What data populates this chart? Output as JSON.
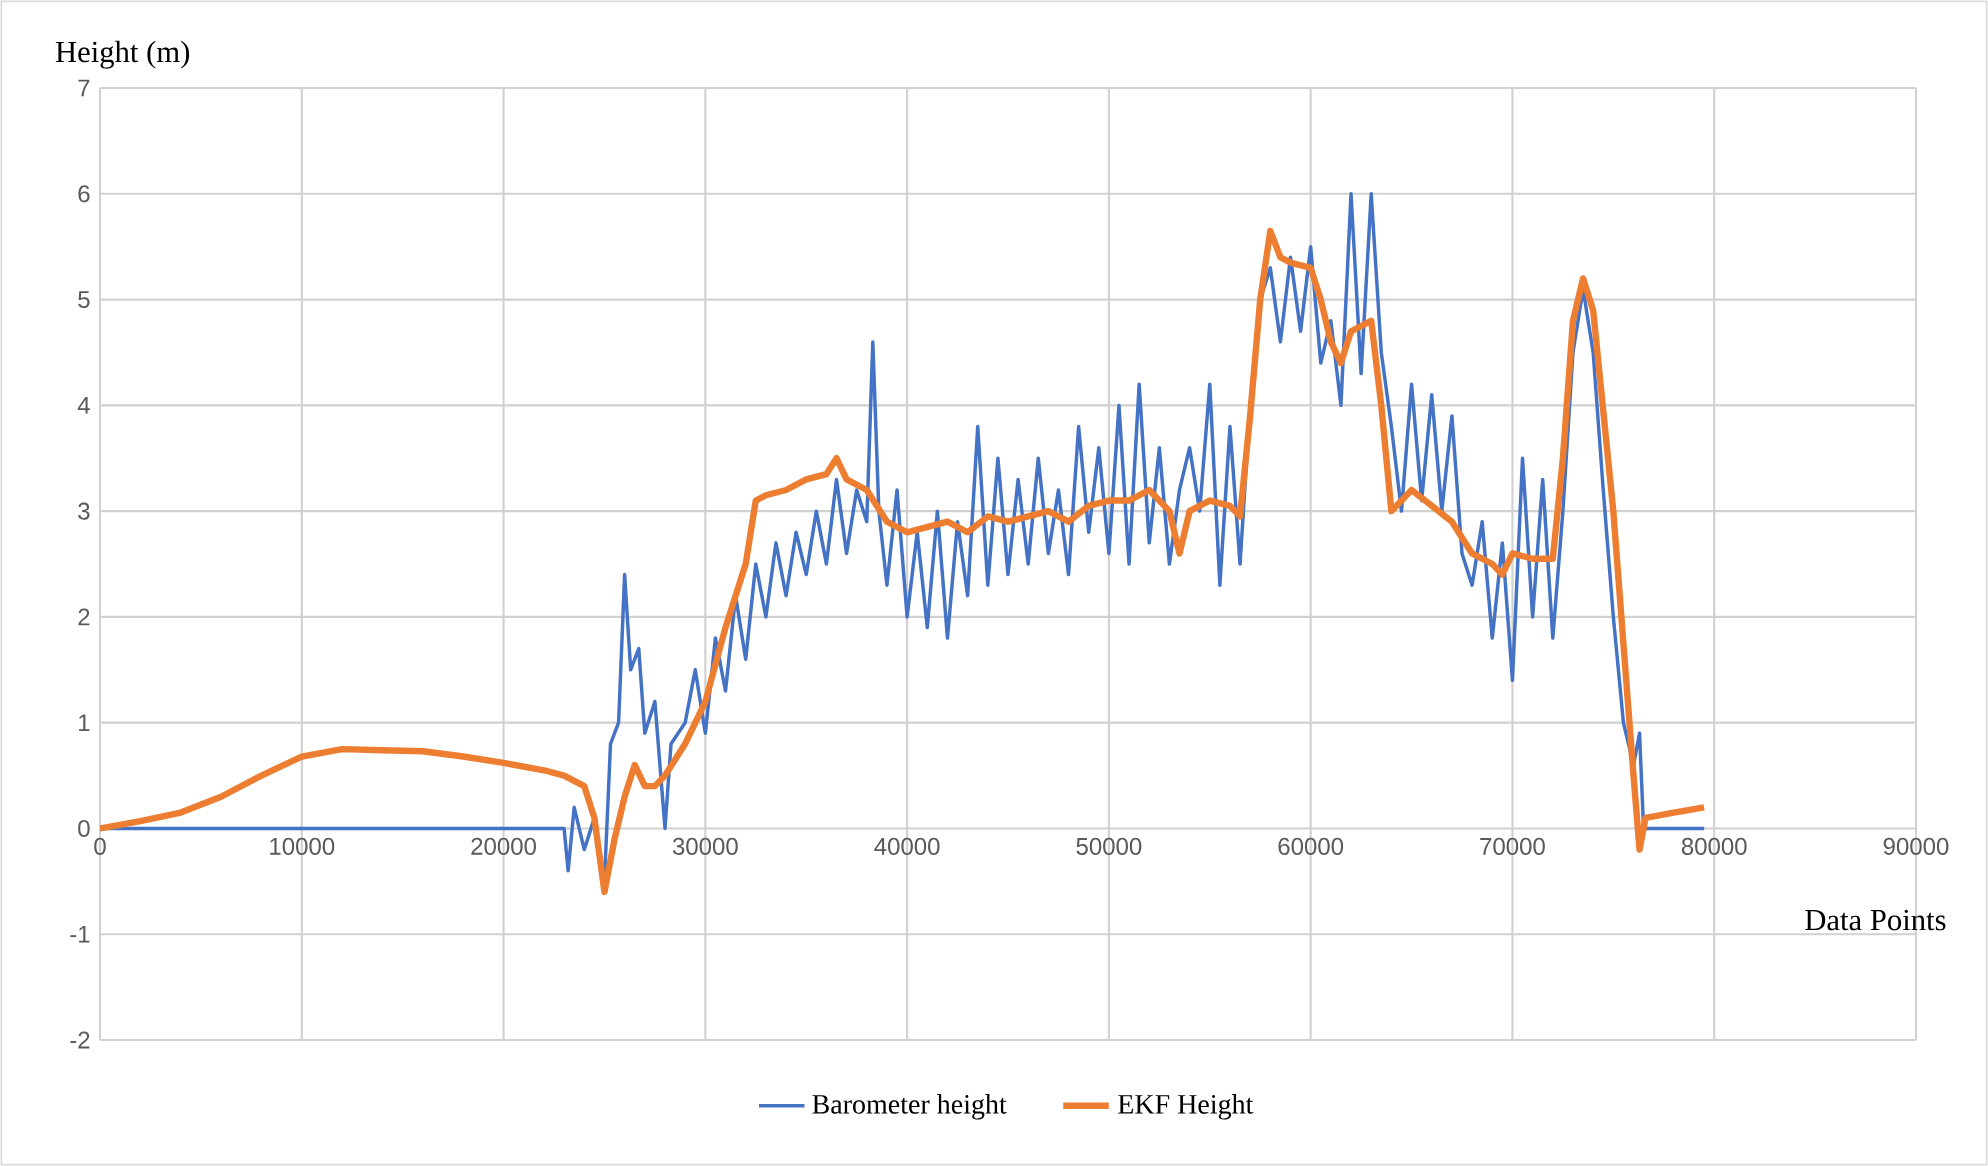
{
  "chart_data": {
    "type": "line",
    "xlabel": "Data Points",
    "ylabel": "Height (m)",
    "xlim": [
      0,
      90000
    ],
    "ylim": [
      -2,
      7
    ],
    "xticks": [
      0,
      10000,
      20000,
      30000,
      40000,
      50000,
      60000,
      70000,
      80000,
      90000
    ],
    "yticks": [
      -2,
      -1,
      0,
      1,
      2,
      3,
      4,
      5,
      6,
      7
    ],
    "grid": true,
    "legend": "bottom",
    "marker": "none",
    "line_style": "solid",
    "series": [
      {
        "name": "Barometer height",
        "color": "#4472c4",
        "x": [
          0,
          23000,
          23200,
          23500,
          24000,
          24500,
          25000,
          25300,
          25700,
          26000,
          26300,
          26700,
          27000,
          27500,
          28000,
          28300,
          29000,
          29500,
          30000,
          30500,
          31000,
          31500,
          32000,
          32500,
          33000,
          33500,
          34000,
          34500,
          35000,
          35500,
          36000,
          36500,
          37000,
          37500,
          38000,
          38300,
          38600,
          39000,
          39500,
          40000,
          40500,
          41000,
          41500,
          42000,
          42500,
          43000,
          43500,
          44000,
          44500,
          45000,
          45500,
          46000,
          46500,
          47000,
          47500,
          48000,
          48500,
          49000,
          49500,
          50000,
          50500,
          51000,
          51500,
          52000,
          52500,
          53000,
          53500,
          54000,
          54500,
          55000,
          55500,
          56000,
          56500,
          57000,
          57500,
          58000,
          58500,
          59000,
          59500,
          60000,
          60500,
          61000,
          61500,
          62000,
          62500,
          63000,
          63500,
          64000,
          64500,
          65000,
          65500,
          66000,
          66500,
          67000,
          67500,
          68000,
          68500,
          69000,
          69500,
          70000,
          70500,
          71000,
          71500,
          72000,
          72500,
          73000,
          73500,
          74000,
          74500,
          75000,
          75500,
          76000,
          76300,
          76500,
          79500
        ],
        "values": [
          0,
          0,
          -0.4,
          0.2,
          -0.2,
          0.1,
          -0.5,
          0.8,
          1.0,
          2.4,
          1.5,
          1.7,
          0.9,
          1.2,
          0.0,
          0.8,
          1.0,
          1.5,
          0.9,
          1.8,
          1.3,
          2.2,
          1.6,
          2.5,
          2.0,
          2.7,
          2.2,
          2.8,
          2.4,
          3.0,
          2.5,
          3.3,
          2.6,
          3.2,
          2.9,
          4.6,
          3.0,
          2.3,
          3.2,
          2.0,
          2.8,
          1.9,
          3.0,
          1.8,
          2.9,
          2.2,
          3.8,
          2.3,
          3.5,
          2.4,
          3.3,
          2.5,
          3.5,
          2.6,
          3.2,
          2.4,
          3.8,
          2.8,
          3.6,
          2.6,
          4.0,
          2.5,
          4.2,
          2.7,
          3.6,
          2.5,
          3.2,
          3.6,
          3.0,
          4.2,
          2.3,
          3.8,
          2.5,
          4.0,
          5.0,
          5.3,
          4.6,
          5.4,
          4.7,
          5.5,
          4.4,
          4.8,
          4.0,
          6.0,
          4.3,
          6.0,
          4.5,
          3.8,
          3.0,
          4.2,
          3.1,
          4.1,
          3.0,
          3.9,
          2.6,
          2.3,
          2.9,
          1.8,
          2.7,
          1.4,
          3.5,
          2.0,
          3.3,
          1.8,
          3.0,
          4.5,
          5.1,
          4.5,
          3.2,
          2.0,
          1.0,
          0.6,
          0.9,
          0,
          0
        ]
      },
      {
        "name": "EKF Height",
        "color": "#ed7d31",
        "x": [
          0,
          2000,
          4000,
          6000,
          8000,
          10000,
          12000,
          14000,
          16000,
          18000,
          20000,
          22000,
          23000,
          24000,
          24500,
          25000,
          25500,
          26000,
          26500,
          27000,
          27500,
          28000,
          29000,
          30000,
          31000,
          32000,
          32500,
          33000,
          34000,
          35000,
          36000,
          36500,
          37000,
          38000,
          39000,
          40000,
          41000,
          42000,
          43000,
          44000,
          45000,
          46000,
          47000,
          48000,
          49000,
          50000,
          51000,
          52000,
          53000,
          53500,
          54000,
          55000,
          56000,
          56500,
          57000,
          57500,
          58000,
          58500,
          59000,
          60000,
          60500,
          61000,
          61500,
          62000,
          63000,
          63500,
          64000,
          65000,
          66000,
          67000,
          68000,
          69000,
          69500,
          70000,
          71000,
          72000,
          72500,
          73000,
          73500,
          74000,
          75000,
          76000,
          76300,
          76600,
          78000,
          79500
        ],
        "values": [
          0,
          0.07,
          0.15,
          0.3,
          0.5,
          0.68,
          0.75,
          0.74,
          0.73,
          0.68,
          0.62,
          0.55,
          0.5,
          0.4,
          0.1,
          -0.6,
          -0.1,
          0.3,
          0.6,
          0.4,
          0.4,
          0.5,
          0.8,
          1.2,
          1.9,
          2.5,
          3.1,
          3.15,
          3.2,
          3.3,
          3.35,
          3.5,
          3.3,
          3.2,
          2.9,
          2.8,
          2.85,
          2.9,
          2.8,
          2.95,
          2.9,
          2.95,
          3.0,
          2.9,
          3.05,
          3.1,
          3.1,
          3.2,
          3.0,
          2.6,
          3.0,
          3.1,
          3.05,
          2.95,
          3.9,
          5.0,
          5.65,
          5.4,
          5.35,
          5.3,
          5.0,
          4.6,
          4.4,
          4.7,
          4.8,
          4.0,
          3.0,
          3.2,
          3.05,
          2.9,
          2.6,
          2.5,
          2.4,
          2.6,
          2.55,
          2.55,
          3.5,
          4.8,
          5.2,
          4.9,
          3.0,
          0.5,
          -0.2,
          0.1,
          0.15,
          0.2
        ]
      }
    ]
  }
}
